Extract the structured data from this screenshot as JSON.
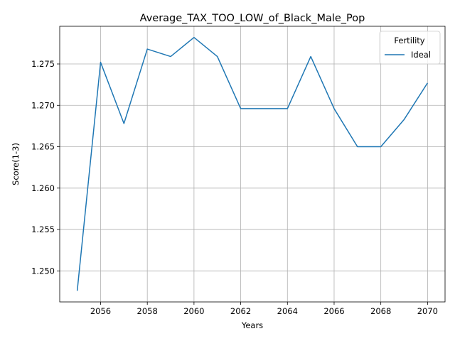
{
  "chart_data": {
    "type": "line",
    "title": "Average_TAX_TOO_LOW_of_Black_Male_Pop",
    "xlabel": "Years",
    "ylabel": "Score(1-3)",
    "x": [
      2055,
      2056,
      2057,
      2058,
      2059,
      2060,
      2061,
      2062,
      2063,
      2064,
      2065,
      2066,
      2067,
      2068,
      2069,
      2070
    ],
    "series": [
      {
        "name": "Ideal",
        "color": "#1f77b4",
        "values": [
          1.2476,
          1.2752,
          1.2678,
          1.2768,
          1.2759,
          1.2782,
          1.2759,
          1.2696,
          1.2696,
          1.2696,
          1.2759,
          1.2696,
          1.265,
          1.265,
          1.2683,
          1.2727
        ]
      }
    ],
    "xlim": [
      2054.25,
      2070.75
    ],
    "ylim": [
      1.24625,
      1.27955
    ],
    "xticks": [
      2056,
      2058,
      2060,
      2062,
      2064,
      2066,
      2068,
      2070
    ],
    "xtick_labels": [
      "2056",
      "2058",
      "2060",
      "2062",
      "2064",
      "2066",
      "2068",
      "2070"
    ],
    "yticks": [
      1.25,
      1.255,
      1.26,
      1.265,
      1.27,
      1.275
    ],
    "ytick_labels": [
      "1.250",
      "1.255",
      "1.260",
      "1.265",
      "1.270",
      "1.275"
    ],
    "grid": true,
    "legend": {
      "title": "Fertility",
      "placement": "top-right"
    }
  }
}
